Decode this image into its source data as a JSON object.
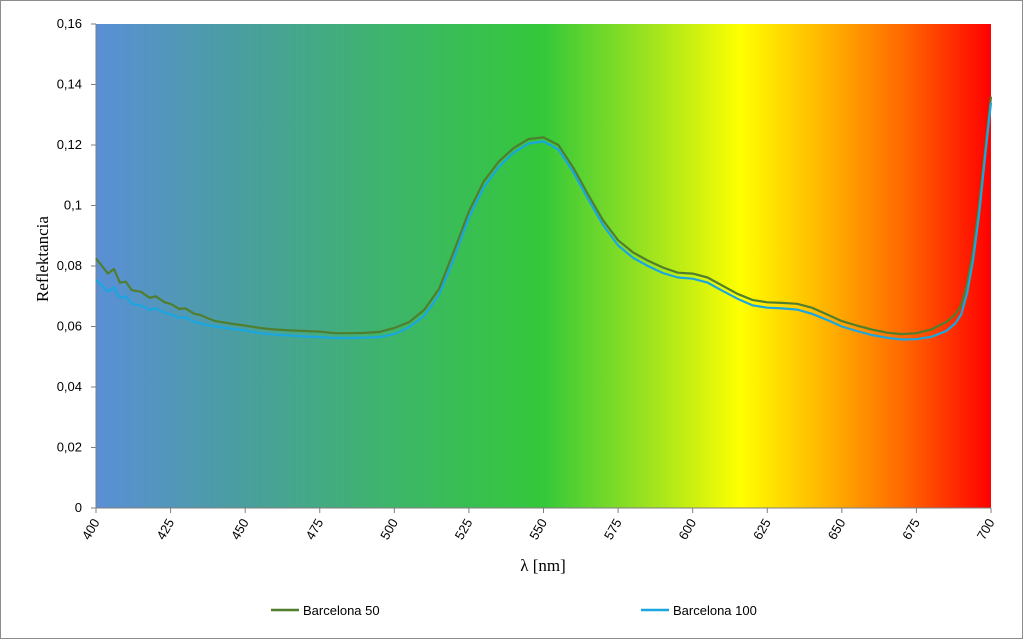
{
  "chart_data": {
    "type": "line",
    "xlabel": "λ [nm]",
    "ylabel": "Reflektancia",
    "xlim": [
      400,
      700
    ],
    "ylim": [
      0,
      0.16
    ],
    "x_ticks": [
      "400",
      "425",
      "450",
      "475",
      "500",
      "525",
      "550",
      "575",
      "600",
      "625",
      "650",
      "675",
      "700"
    ],
    "y_ticks": [
      "0",
      "0,02",
      "0,04",
      "0,06",
      "0,08",
      "0,1",
      "0,12",
      "0,14",
      "0,16"
    ],
    "grid": false,
    "legend_position": "bottom",
    "background": "visible-spectrum gradient",
    "series": [
      {
        "name": "Barcelona 50",
        "color": "#4f7f2e",
        "x": [
          400,
          402,
          404,
          406,
          408,
          410,
          412,
          415,
          418,
          420,
          423,
          425,
          428,
          430,
          433,
          435,
          438,
          440,
          445,
          450,
          455,
          460,
          465,
          470,
          475,
          480,
          485,
          490,
          495,
          500,
          505,
          510,
          515,
          520,
          525,
          530,
          535,
          540,
          545,
          550,
          555,
          560,
          565,
          570,
          575,
          580,
          585,
          590,
          595,
          600,
          605,
          610,
          615,
          620,
          625,
          630,
          635,
          640,
          645,
          650,
          655,
          660,
          665,
          670,
          675,
          680,
          685,
          688,
          690,
          692,
          694,
          696,
          698,
          700
        ],
        "values": [
          0.0825,
          0.08,
          0.0775,
          0.079,
          0.0745,
          0.0748,
          0.072,
          0.0715,
          0.0695,
          0.07,
          0.068,
          0.0675,
          0.0658,
          0.066,
          0.0642,
          0.0638,
          0.0625,
          0.0618,
          0.061,
          0.0603,
          0.0595,
          0.059,
          0.0587,
          0.0585,
          0.0583,
          0.0578,
          0.0578,
          0.0579,
          0.0582,
          0.0595,
          0.0615,
          0.0655,
          0.0725,
          0.085,
          0.098,
          0.108,
          0.1145,
          0.119,
          0.122,
          0.1225,
          0.12,
          0.1125,
          0.1035,
          0.095,
          0.0885,
          0.0845,
          0.0818,
          0.0795,
          0.0778,
          0.0775,
          0.0762,
          0.0735,
          0.0708,
          0.0688,
          0.068,
          0.0678,
          0.0675,
          0.0662,
          0.064,
          0.0618,
          0.0603,
          0.059,
          0.058,
          0.0575,
          0.0578,
          0.059,
          0.0615,
          0.064,
          0.067,
          0.074,
          0.085,
          0.1,
          0.118,
          0.136
        ]
      },
      {
        "name": "Barcelona 100",
        "color": "#1aa6e0",
        "x": [
          400,
          402,
          404,
          406,
          408,
          410,
          412,
          415,
          418,
          420,
          423,
          425,
          428,
          430,
          433,
          435,
          438,
          440,
          445,
          450,
          455,
          460,
          465,
          470,
          475,
          480,
          485,
          490,
          495,
          500,
          505,
          510,
          515,
          520,
          525,
          530,
          535,
          540,
          545,
          550,
          555,
          560,
          565,
          570,
          575,
          580,
          585,
          590,
          595,
          600,
          605,
          610,
          615,
          620,
          625,
          630,
          635,
          640,
          645,
          650,
          655,
          660,
          665,
          670,
          675,
          680,
          685,
          688,
          690,
          692,
          694,
          696,
          698,
          700
        ],
        "values": [
          0.0755,
          0.0735,
          0.0715,
          0.073,
          0.0695,
          0.07,
          0.0675,
          0.067,
          0.0655,
          0.066,
          0.0645,
          0.064,
          0.0628,
          0.063,
          0.0615,
          0.061,
          0.0603,
          0.06,
          0.0593,
          0.0587,
          0.0578,
          0.0573,
          0.057,
          0.0567,
          0.0565,
          0.0562,
          0.0562,
          0.0563,
          0.0565,
          0.0575,
          0.0598,
          0.0635,
          0.0705,
          0.0825,
          0.096,
          0.106,
          0.1128,
          0.1175,
          0.1205,
          0.1212,
          0.1185,
          0.111,
          0.102,
          0.0935,
          0.0868,
          0.0827,
          0.08,
          0.0777,
          0.0762,
          0.0758,
          0.0745,
          0.0718,
          0.0692,
          0.067,
          0.0662,
          0.066,
          0.0656,
          0.0642,
          0.0622,
          0.06,
          0.0585,
          0.0572,
          0.0563,
          0.0557,
          0.0558,
          0.0566,
          0.0585,
          0.061,
          0.064,
          0.071,
          0.082,
          0.097,
          0.116,
          0.134
        ]
      }
    ]
  }
}
